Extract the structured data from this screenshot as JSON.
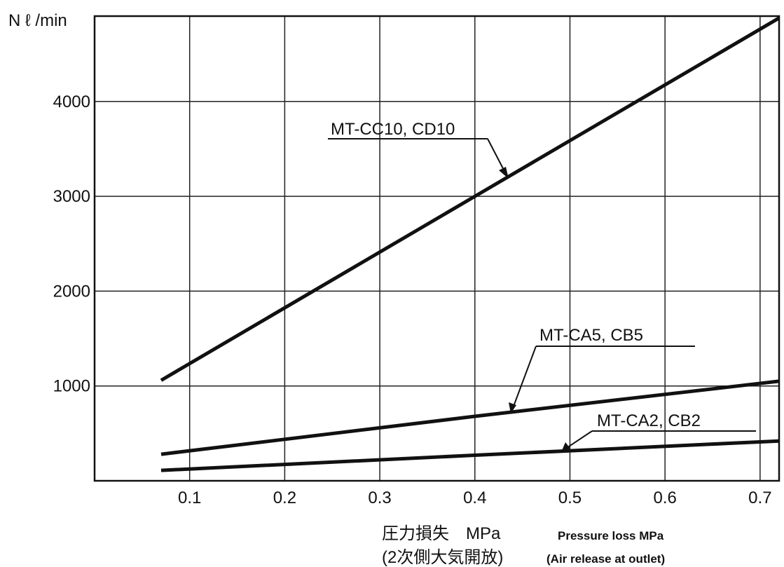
{
  "chart_data": {
    "type": "line",
    "ylabel": "N ℓ /min",
    "xlabel_jp": "圧力損失　MPa",
    "xlabel_jp_sub": "(2次側大気開放)",
    "xlabel_en": "Pressure loss MPa",
    "xlabel_en_sub": "(Air release at outlet)",
    "xlim": [
      0.0,
      0.72
    ],
    "ylim": [
      0,
      4900
    ],
    "x_ticks": [
      0.1,
      0.2,
      0.3,
      0.4,
      0.5,
      0.6,
      0.7
    ],
    "x_tick_labels": [
      "0.1",
      "0.2",
      "0.3",
      "0.4",
      "0.5",
      "0.6",
      "0.7"
    ],
    "y_ticks": [
      1000,
      2000,
      3000,
      4000
    ],
    "y_tick_labels": [
      "1000",
      "2000",
      "3000",
      "4000"
    ],
    "grid": true,
    "series": [
      {
        "name": "MT-CC10, CD10",
        "x": [
          0.07,
          0.4,
          0.72
        ],
        "y": [
          1060,
          3000,
          4880
        ]
      },
      {
        "name": "MT-CA5, CB5",
        "x": [
          0.07,
          0.4,
          0.72
        ],
        "y": [
          280,
          680,
          1050
        ]
      },
      {
        "name": "MT-CA2, CB2",
        "x": [
          0.07,
          0.4,
          0.72
        ],
        "y": [
          110,
          270,
          420
        ]
      }
    ]
  }
}
